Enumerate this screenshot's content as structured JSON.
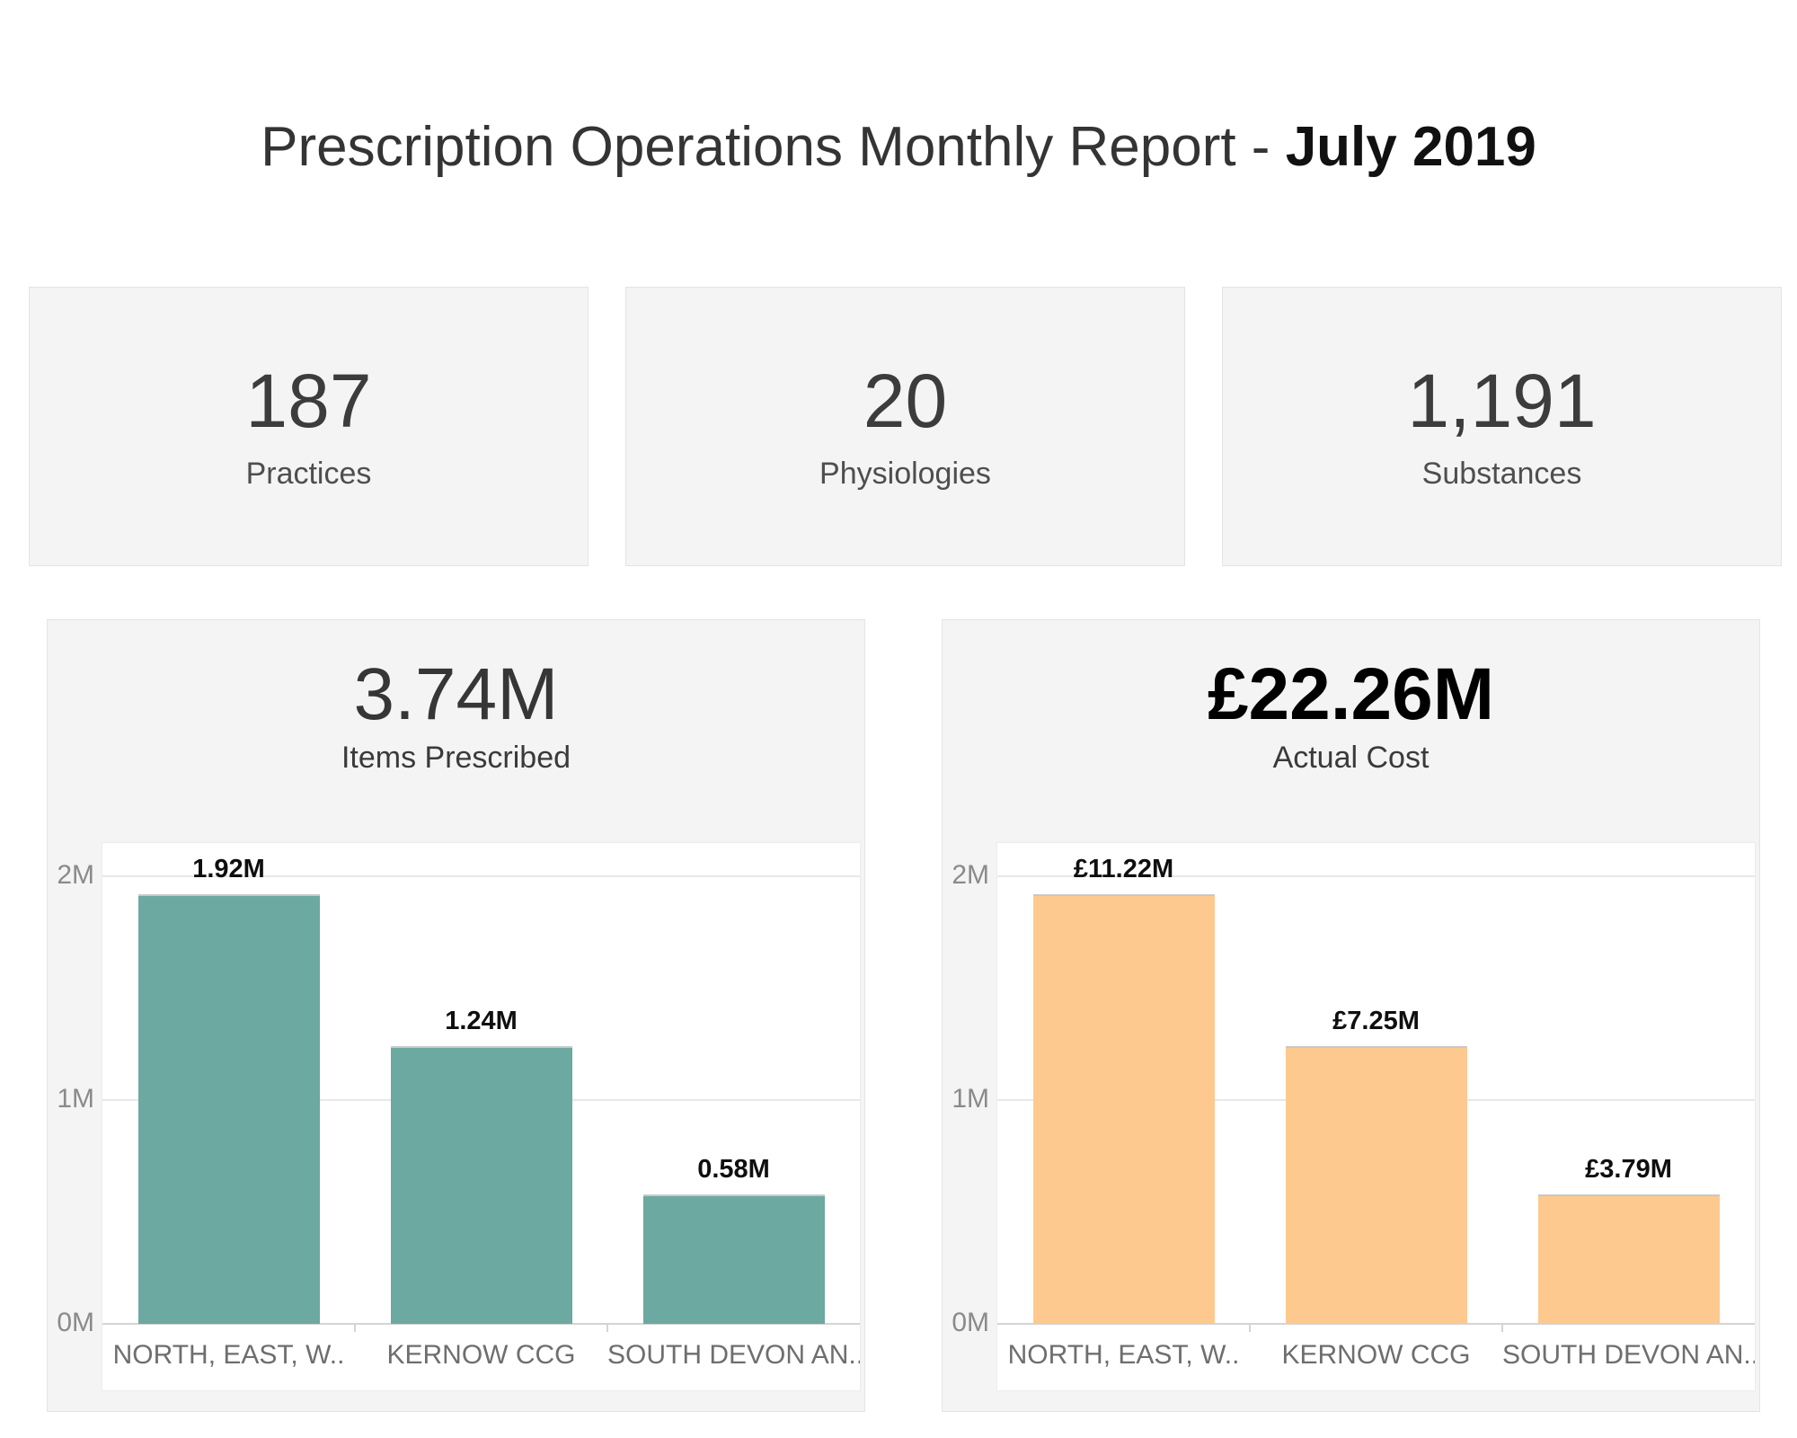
{
  "page": {
    "title_prefix": "Prescription Operations Monthly Report - ",
    "title_emphasis": "July 2019"
  },
  "kpis": [
    {
      "value": "187",
      "label": "Practices"
    },
    {
      "value": "20",
      "label": "Physiologies"
    },
    {
      "value": "1,191",
      "label": "Substances"
    }
  ],
  "chart_data": [
    {
      "type": "bar",
      "title": "3.74M",
      "subtitle": "Items Prescribed",
      "categories": [
        "NORTH, EAST, W..",
        "KERNOW CCG",
        "SOUTH DEVON AN.."
      ],
      "values": [
        1920000,
        1240000,
        580000
      ],
      "value_labels": [
        "1.92M",
        "1.24M",
        "0.58M"
      ],
      "y_ticks": [
        {
          "label": "2M",
          "value": 2000000
        },
        {
          "label": "1M",
          "value": 1000000
        },
        {
          "label": "0M",
          "value": 0
        }
      ],
      "ylim": [
        0,
        2150000
      ],
      "bar_color": "#6BA9A1",
      "grid": "horizontal",
      "legend": "none",
      "title_bold": false
    },
    {
      "type": "bar",
      "title": "£22.26M",
      "subtitle": "Actual Cost",
      "categories": [
        "NORTH, EAST, W..",
        "KERNOW CCG",
        "SOUTH DEVON AN.."
      ],
      "values": [
        11220000,
        7250000,
        3790000
      ],
      "value_labels": [
        "£11.22M",
        "£7.25M",
        "£3.79M"
      ],
      "y_ticks": [
        {
          "label": "2M",
          "value": 2000000
        },
        {
          "label": "1M",
          "value": 1000000
        },
        {
          "label": "0M",
          "value": 0
        }
      ],
      "ylim": [
        0,
        2150000
      ],
      "bar_display_values": [
        1920000,
        1240000,
        580000
      ],
      "bar_color": "#FEC98F",
      "grid": "horizontal",
      "legend": "none",
      "title_bold": true
    }
  ]
}
